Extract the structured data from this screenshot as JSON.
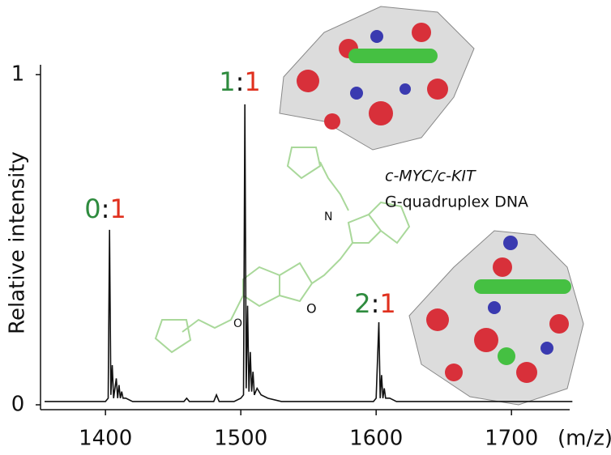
{
  "chart_data": {
    "type": "line",
    "y_label": "Relative intensity",
    "x_label": "(m/z)",
    "xlim": [
      1352,
      1743
    ],
    "xticks": [
      1400,
      1500,
      1600,
      1700
    ],
    "ylim": [
      0,
      1.03
    ],
    "yticks": [
      0,
      1
    ],
    "series": [
      {
        "color": "#111111",
        "x": [
          1355,
          1380,
          1400,
          1402,
          1403,
          1404,
          1405,
          1406,
          1408,
          1409,
          1410,
          1411,
          1412,
          1413,
          1415,
          1420,
          1440,
          1458,
          1460,
          1462,
          1480,
          1482,
          1484,
          1495,
          1500,
          1502,
          1503,
          1504,
          1505,
          1506,
          1507,
          1508,
          1509,
          1510,
          1512,
          1515,
          1520,
          1530,
          1560,
          1580,
          1598,
          1600,
          1602,
          1603,
          1604,
          1605,
          1606,
          1607,
          1610,
          1615,
          1640,
          1700,
          1745
        ],
        "values": [
          0.01,
          0.01,
          0.01,
          0.02,
          0.53,
          0.03,
          0.12,
          0.02,
          0.08,
          0.02,
          0.06,
          0.02,
          0.04,
          0.02,
          0.02,
          0.01,
          0.01,
          0.01,
          0.02,
          0.01,
          0.01,
          0.03,
          0.01,
          0.01,
          0.02,
          0.03,
          0.91,
          0.05,
          0.3,
          0.04,
          0.16,
          0.04,
          0.1,
          0.03,
          0.05,
          0.03,
          0.02,
          0.01,
          0.01,
          0.01,
          0.01,
          0.02,
          0.25,
          0.02,
          0.09,
          0.02,
          0.05,
          0.02,
          0.02,
          0.01,
          0.01,
          0.01,
          0.01
        ]
      }
    ],
    "annotations": [
      {
        "parts": [
          {
            "text": "0",
            "color": "#2e8b3e"
          },
          {
            "text": ":",
            "color": "#111111"
          },
          {
            "text": "1",
            "color": "#e0301e"
          }
        ]
      },
      {
        "parts": [
          {
            "text": "1",
            "color": "#2e8b3e"
          },
          {
            "text": ":",
            "color": "#111111"
          },
          {
            "text": "1",
            "color": "#e0301e"
          }
        ]
      },
      {
        "parts": [
          {
            "text": "2",
            "color": "#2e8b3e"
          },
          {
            "text": ":",
            "color": "#111111"
          },
          {
            "text": "1",
            "color": "#e0301e"
          }
        ]
      }
    ],
    "dna_label": {
      "italic": "c-MYC/c-KIT",
      "text": "G-quadruplex DNA"
    }
  }
}
